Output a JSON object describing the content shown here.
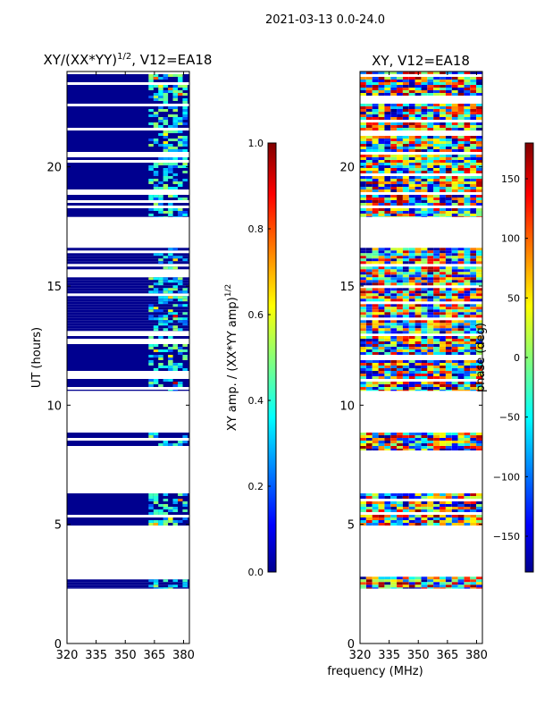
{
  "figure_title": "2021-03-13 0.0-24.0",
  "shared_xlabel": "frequency (MHz)",
  "chart_data": [
    {
      "type": "heatmap",
      "title": "XY/(XX*YY)",
      "title_exponent": "1/2",
      "title_suffix": ", V12=EA18",
      "xlabel": "",
      "ylabel": "UT (hours)",
      "xlim": [
        320,
        383
      ],
      "ylim": [
        0,
        24
      ],
      "xticks": [
        320,
        335,
        350,
        365,
        380
      ],
      "yticks": [
        0,
        5,
        10,
        15,
        20
      ],
      "filled_hour_ranges": [
        [
          2.3,
          2.8
        ],
        [
          4.95,
          6.3
        ],
        [
          8.1,
          8.85
        ],
        [
          10.6,
          12.9
        ],
        [
          13.0,
          16.6
        ],
        [
          17.9,
          24.0
        ]
      ],
      "colorbar": {
        "label": "XY amp. / (XX*YY amp)",
        "label_exponent": "1/2",
        "range": [
          0.0,
          1.0
        ],
        "ticks": [
          "0.0",
          "0.2",
          "0.4",
          "0.6",
          "0.8",
          "1.0"
        ],
        "colormap": "jet"
      }
    },
    {
      "type": "heatmap",
      "title": "XY, V12=EA18",
      "xlabel": "frequency (MHz)",
      "ylabel": "",
      "xlim": [
        320,
        383
      ],
      "ylim": [
        0,
        24
      ],
      "xticks": [
        320,
        335,
        350,
        365,
        380
      ],
      "yticks": [
        0,
        5,
        10,
        15,
        20
      ],
      "filled_hour_ranges": [
        [
          2.3,
          2.8
        ],
        [
          4.95,
          6.3
        ],
        [
          8.1,
          8.85
        ],
        [
          10.6,
          12.9
        ],
        [
          13.0,
          16.6
        ],
        [
          17.9,
          24.0
        ]
      ],
      "colorbar": {
        "label": "phase (deg)",
        "range": [
          -180,
          180
        ],
        "ticks": [
          "150",
          "100",
          "50",
          "0",
          "−50",
          "−100",
          "−150"
        ],
        "tick_values": [
          150,
          100,
          50,
          0,
          -50,
          -100,
          -150
        ],
        "colormap": "jet"
      }
    }
  ],
  "colors": {
    "background": "#ffffff",
    "axes": "#000000",
    "amp_base": "#00008f"
  }
}
